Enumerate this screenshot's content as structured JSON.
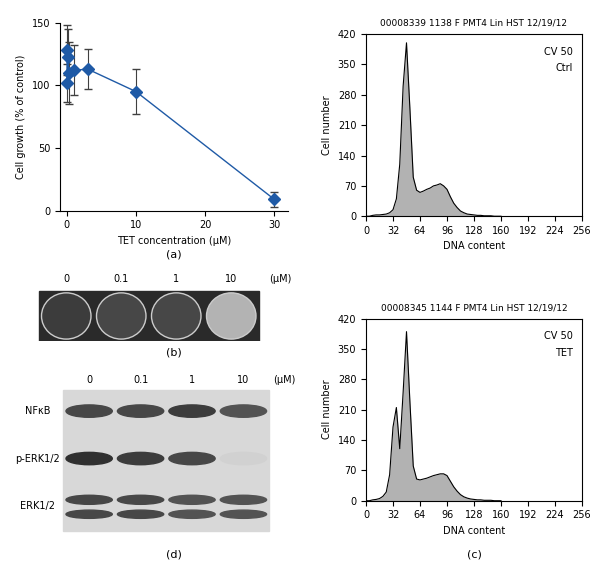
{
  "chart_data": [
    {
      "type": "line",
      "panel_label": "(a)",
      "x_label": "TET concentration (μM)",
      "y_label": "Cell growth (% of control)",
      "x": [
        0.01,
        0.03,
        0.1,
        0.3,
        1,
        3,
        10,
        30
      ],
      "values": [
        102,
        128,
        123,
        110,
        112,
        113,
        95,
        9
      ],
      "error": [
        15,
        20,
        22,
        25,
        20,
        16,
        18,
        6
      ],
      "color": "#1f5aa6",
      "marker": "diamond",
      "xlim": [
        -1,
        32
      ],
      "xticks": [
        0,
        10,
        20,
        30
      ],
      "ylim": [
        0,
        150
      ],
      "yticks": [
        0,
        50,
        100,
        150
      ]
    },
    {
      "type": "area",
      "title": "00008339 1138 F PMT4 Lin HST 12/19/12",
      "annotations": [
        "CV 50",
        "Ctrl"
      ],
      "x_label": "DNA content",
      "y_label": "Cell number",
      "x": [
        0,
        4,
        8,
        12,
        16,
        20,
        24,
        28,
        32,
        36,
        40,
        44,
        48,
        52,
        56,
        60,
        64,
        68,
        72,
        76,
        80,
        84,
        88,
        92,
        96,
        100,
        104,
        108,
        112,
        116,
        120,
        124,
        128,
        132,
        136,
        140,
        144,
        148,
        152,
        156,
        160
      ],
      "values": [
        0,
        0,
        2,
        3,
        3,
        4,
        5,
        8,
        15,
        40,
        120,
        300,
        400,
        250,
        90,
        60,
        55,
        58,
        62,
        65,
        70,
        72,
        75,
        70,
        62,
        45,
        30,
        20,
        12,
        8,
        5,
        4,
        3,
        2,
        2,
        1,
        1,
        1,
        0,
        0,
        0
      ],
      "color": "#808080",
      "xlim": [
        0,
        256
      ],
      "xticks": [
        0,
        32,
        64,
        96,
        128,
        160,
        192,
        224,
        256
      ],
      "ylim": [
        0,
        420
      ],
      "yticks": [
        0,
        70,
        140,
        210,
        280,
        350,
        420
      ]
    },
    {
      "type": "area",
      "title": "00008345 1144 F PMT4 Lin HST 12/19/12",
      "panel_label": "(c)",
      "annotations": [
        "CV 50",
        "TET"
      ],
      "x_label": "DNA content",
      "y_label": "Cell number",
      "x": [
        0,
        4,
        8,
        12,
        16,
        20,
        24,
        28,
        32,
        36,
        40,
        44,
        48,
        52,
        56,
        60,
        64,
        68,
        72,
        76,
        80,
        84,
        88,
        92,
        96,
        100,
        104,
        108,
        112,
        116,
        120,
        124,
        128,
        132,
        136,
        140,
        144,
        148,
        152,
        156,
        160
      ],
      "values": [
        0,
        0,
        2,
        3,
        5,
        10,
        20,
        60,
        170,
        215,
        120,
        250,
        390,
        230,
        80,
        50,
        48,
        50,
        52,
        55,
        58,
        60,
        62,
        62,
        58,
        45,
        32,
        22,
        14,
        9,
        6,
        4,
        3,
        2,
        2,
        1,
        1,
        1,
        0,
        0,
        0
      ],
      "color": "#808080",
      "xlim": [
        0,
        256
      ],
      "xticks": [
        0,
        32,
        64,
        96,
        128,
        160,
        192,
        224,
        256
      ],
      "ylim": [
        0,
        420
      ],
      "yticks": [
        0,
        70,
        140,
        210,
        280,
        350,
        420
      ]
    }
  ],
  "panel_b": {
    "panel_label": "(b)",
    "columns": [
      "0",
      "0.1",
      "1",
      "10"
    ],
    "unit": "(μM)",
    "intensity": [
      0.9,
      0.85,
      0.85,
      0.35
    ]
  },
  "panel_d": {
    "panel_label": "(d)",
    "columns": [
      "0",
      "0.1",
      "1",
      "10"
    ],
    "unit": "(μM)",
    "rows": [
      {
        "label": "NFκB",
        "intensity": [
          0.8,
          0.8,
          0.85,
          0.75
        ]
      },
      {
        "label": "p-ERK1/2",
        "intensity": [
          0.9,
          0.85,
          0.8,
          0.2
        ]
      },
      {
        "label": "ERK1/2",
        "intensity": [
          0.8,
          0.8,
          0.75,
          0.75
        ]
      }
    ]
  }
}
